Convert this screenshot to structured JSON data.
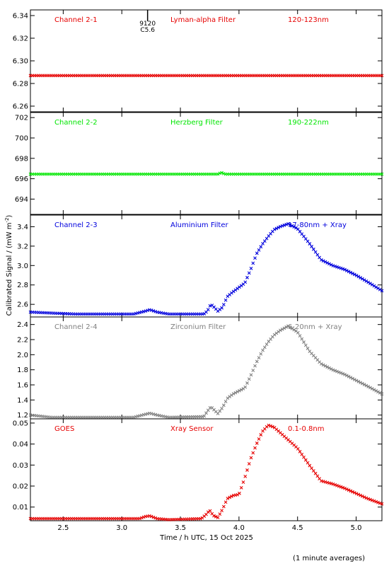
{
  "chart_data": {
    "type": "scatter",
    "x_axis": {
      "label": "Time / h UTC, 15 Oct 2025",
      "range": [
        2.22,
        5.22
      ],
      "ticks": [
        2.5,
        3.0,
        3.5,
        4.0,
        4.5,
        5.0
      ],
      "tick_labels": [
        "2.5",
        "3.0",
        "3.5",
        "4.0",
        "4.5",
        "5.0"
      ]
    },
    "y_axis_label": "Calibrated Signal / (mW m^-2)",
    "footnote": "(1 minute averages)",
    "panels": [
      {
        "channel": "Channel 2-1",
        "filter": "Lyman-alpha Filter",
        "band": "120-123nm",
        "color": "#e60000",
        "ylim": [
          6.255,
          6.345
        ],
        "ticks": [
          6.26,
          6.28,
          6.3,
          6.32,
          6.34
        ],
        "tick_labels": [
          "6.26",
          "6.28",
          "6.30",
          "6.32",
          "6.34"
        ],
        "annotation": {
          "x": 3.22,
          "lines": [
            "9120",
            "C5.6"
          ]
        },
        "points": [
          [
            2.22,
            6.287
          ],
          [
            5.22,
            6.287
          ]
        ]
      },
      {
        "channel": "Channel 2-2",
        "filter": "Herzberg Filter",
        "band": "190-222nm",
        "color": "#00e600",
        "ylim": [
          692.5,
          702.5
        ],
        "ticks": [
          694,
          696,
          698,
          700,
          702
        ],
        "tick_labels": [
          "694",
          "696",
          "698",
          "700",
          "702"
        ],
        "points": [
          [
            2.22,
            696.45
          ],
          [
            3.82,
            696.45
          ],
          [
            3.85,
            696.6
          ],
          [
            3.88,
            696.45
          ],
          [
            5.22,
            696.45
          ]
        ]
      },
      {
        "channel": "Channel 2-3",
        "filter": "Aluminium Filter",
        "band": "17-80nm + Xray",
        "color": "#0000dd",
        "ylim": [
          2.47,
          3.52
        ],
        "ticks": [
          2.6,
          2.8,
          3.0,
          3.2,
          3.4
        ],
        "tick_labels": [
          "2.6",
          "2.8",
          "3.0",
          "3.2",
          "3.4"
        ],
        "points": [
          [
            2.22,
            2.52
          ],
          [
            2.6,
            2.5
          ],
          [
            3.1,
            2.5
          ],
          [
            3.2,
            2.53
          ],
          [
            3.24,
            2.545
          ],
          [
            3.3,
            2.52
          ],
          [
            3.4,
            2.5
          ],
          [
            3.7,
            2.5
          ],
          [
            3.73,
            2.53
          ],
          [
            3.76,
            2.6
          ],
          [
            3.78,
            2.58
          ],
          [
            3.82,
            2.53
          ],
          [
            3.86,
            2.57
          ],
          [
            3.9,
            2.68
          ],
          [
            3.95,
            2.73
          ],
          [
            4.05,
            2.82
          ],
          [
            4.1,
            2.96
          ],
          [
            4.15,
            3.12
          ],
          [
            4.2,
            3.22
          ],
          [
            4.25,
            3.3
          ],
          [
            4.3,
            3.37
          ],
          [
            4.35,
            3.4
          ],
          [
            4.42,
            3.43
          ],
          [
            4.5,
            3.38
          ],
          [
            4.6,
            3.23
          ],
          [
            4.7,
            3.06
          ],
          [
            4.8,
            3.0
          ],
          [
            4.9,
            2.96
          ],
          [
            5.0,
            2.9
          ],
          [
            5.1,
            2.83
          ],
          [
            5.22,
            2.74
          ]
        ]
      },
      {
        "channel": "Channel 2-4",
        "filter": "Zirconium Filter",
        "band": "6-20nm + Xray",
        "color": "#808080",
        "ylim": [
          1.15,
          2.5
        ],
        "ticks": [
          1.2,
          1.4,
          1.6,
          1.8,
          2.0,
          2.2,
          2.4
        ],
        "tick_labels": [
          "1.2",
          "1.4",
          "1.6",
          "1.8",
          "2.0",
          "2.2",
          "2.4"
        ],
        "points": [
          [
            2.22,
            1.2
          ],
          [
            2.4,
            1.17
          ],
          [
            3.1,
            1.17
          ],
          [
            3.2,
            1.21
          ],
          [
            3.24,
            1.225
          ],
          [
            3.3,
            1.2
          ],
          [
            3.4,
            1.17
          ],
          [
            3.7,
            1.18
          ],
          [
            3.73,
            1.25
          ],
          [
            3.76,
            1.31
          ],
          [
            3.78,
            1.28
          ],
          [
            3.82,
            1.22
          ],
          [
            3.86,
            1.3
          ],
          [
            3.9,
            1.42
          ],
          [
            3.95,
            1.48
          ],
          [
            4.05,
            1.56
          ],
          [
            4.1,
            1.72
          ],
          [
            4.15,
            1.9
          ],
          [
            4.2,
            2.05
          ],
          [
            4.25,
            2.17
          ],
          [
            4.3,
            2.26
          ],
          [
            4.35,
            2.32
          ],
          [
            4.42,
            2.38
          ],
          [
            4.5,
            2.3
          ],
          [
            4.6,
            2.05
          ],
          [
            4.7,
            1.88
          ],
          [
            4.8,
            1.8
          ],
          [
            4.9,
            1.74
          ],
          [
            5.0,
            1.66
          ],
          [
            5.1,
            1.58
          ],
          [
            5.22,
            1.48
          ]
        ]
      },
      {
        "channel": "GOES",
        "filter": "Xray Sensor",
        "band": "0.1-0.8nm",
        "color": "#e60000",
        "ylim": [
          0.0035,
          0.052
        ],
        "ticks": [
          0.01,
          0.02,
          0.03,
          0.04,
          0.05
        ],
        "tick_labels": [
          "0.01",
          "0.02",
          "0.03",
          "0.04",
          "0.05"
        ],
        "points": [
          [
            2.22,
            0.0045
          ],
          [
            3.15,
            0.0045
          ],
          [
            3.2,
            0.0055
          ],
          [
            3.24,
            0.0058
          ],
          [
            3.3,
            0.0045
          ],
          [
            3.4,
            0.004
          ],
          [
            3.68,
            0.0045
          ],
          [
            3.72,
            0.0065
          ],
          [
            3.75,
            0.0085
          ],
          [
            3.78,
            0.006
          ],
          [
            3.82,
            0.005
          ],
          [
            3.86,
            0.009
          ],
          [
            3.9,
            0.014
          ],
          [
            3.95,
            0.0155
          ],
          [
            4.0,
            0.016
          ],
          [
            4.05,
            0.024
          ],
          [
            4.1,
            0.033
          ],
          [
            4.15,
            0.04
          ],
          [
            4.2,
            0.046
          ],
          [
            4.25,
            0.049
          ],
          [
            4.3,
            0.048
          ],
          [
            4.4,
            0.043
          ],
          [
            4.5,
            0.038
          ],
          [
            4.6,
            0.03
          ],
          [
            4.7,
            0.0225
          ],
          [
            4.8,
            0.021
          ],
          [
            4.9,
            0.019
          ],
          [
            5.0,
            0.0165
          ],
          [
            5.1,
            0.014
          ],
          [
            5.22,
            0.0115
          ]
        ]
      }
    ]
  }
}
